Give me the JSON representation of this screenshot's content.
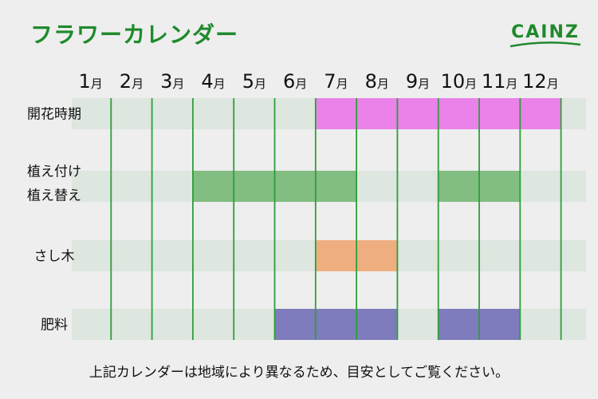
{
  "title": "フラワーカレンダー",
  "logo": {
    "text": "CAINZ"
  },
  "footnote": "上記カレンダーは地域により異なるため、目安としてご覧ください。",
  "colors": {
    "title_green": "#1f8a2c",
    "grid_line": "#2e9e3a",
    "row_bg": "#dde6df",
    "bloom": "#ea82ea",
    "planting": "#82bd82",
    "cutting": "#efae80",
    "fertilizer": "#7e7cbc"
  },
  "chart_data": {
    "type": "gantt",
    "months": [
      "1月",
      "2月",
      "3月",
      "4月",
      "5月",
      "6月",
      "7月",
      "8月",
      "9月",
      "10月",
      "11月",
      "12月"
    ],
    "rows": [
      {
        "label_lines": [
          "開花時期"
        ],
        "color_key": "bloom",
        "periods": [
          {
            "start": 7,
            "end": 12
          }
        ]
      },
      {
        "label_lines": [
          "植え付け",
          "植え替え"
        ],
        "color_key": "planting",
        "periods": [
          {
            "start": 4,
            "end": 7
          },
          {
            "start": 10,
            "end": 11
          }
        ]
      },
      {
        "label_lines": [
          "さし木"
        ],
        "color_key": "cutting",
        "periods": [
          {
            "start": 7,
            "end": 8
          }
        ]
      },
      {
        "label_lines": [
          "肥料"
        ],
        "color_key": "fertilizer",
        "periods": [
          {
            "start": 6,
            "end": 8
          },
          {
            "start": 10,
            "end": 11
          }
        ]
      }
    ]
  }
}
